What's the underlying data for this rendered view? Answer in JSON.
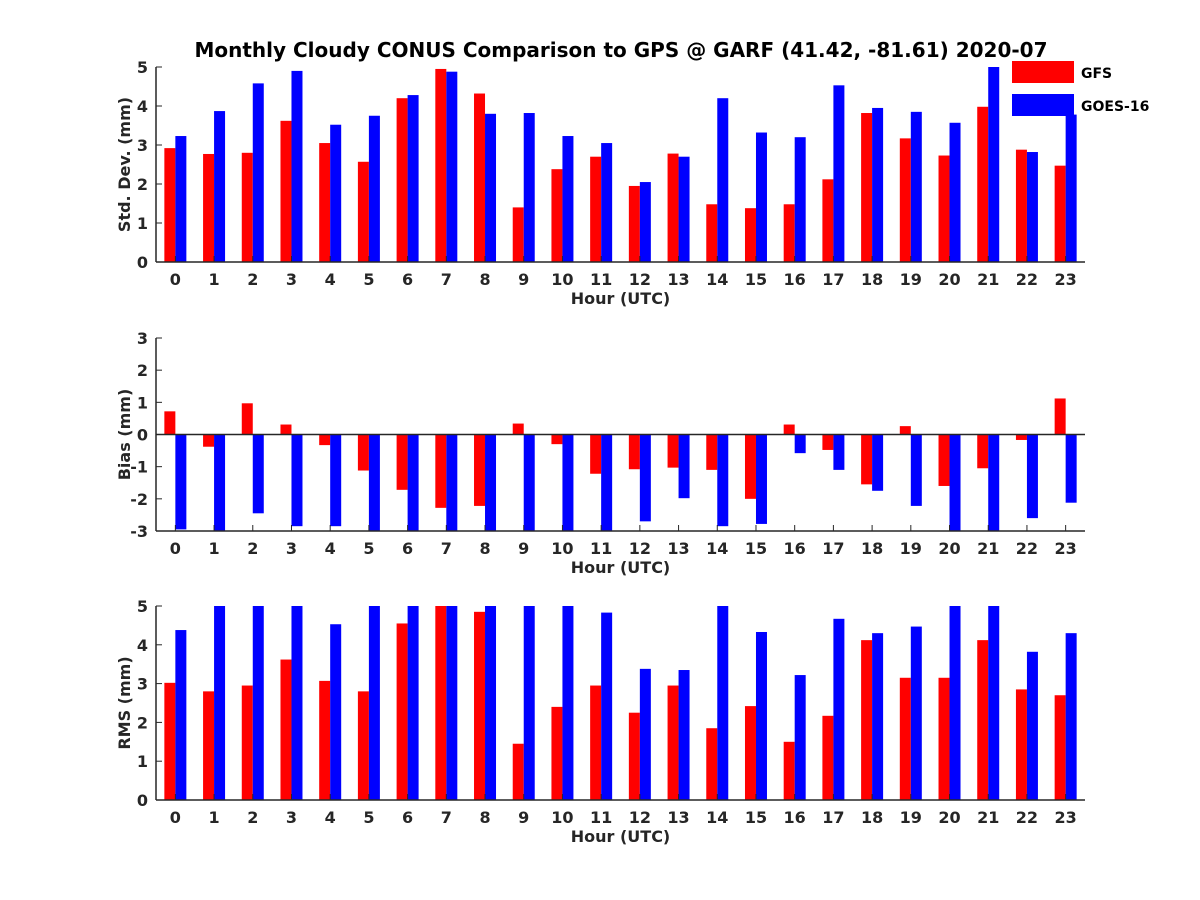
{
  "title": "Monthly Cloudy CONUS Comparison to GPS @ GARF (41.42, -81.61) 2020-07",
  "colors": {
    "GFS": "#ff0000",
    "GOES-16": "#0000ff",
    "axis": "#262626"
  },
  "legend": {
    "items": [
      "GFS",
      "GOES-16"
    ],
    "placement": "top-right"
  },
  "chart_data": [
    {
      "type": "bar",
      "xlabel": "Hour (UTC)",
      "ylabel": "Std. Dev. (mm)",
      "ylim": [
        0,
        5
      ],
      "yticks": [
        "0",
        "1",
        "2",
        "3",
        "4",
        "5"
      ],
      "categories": [
        "0",
        "1",
        "2",
        "3",
        "4",
        "5",
        "6",
        "7",
        "8",
        "9",
        "10",
        "11",
        "12",
        "13",
        "14",
        "15",
        "16",
        "17",
        "18",
        "19",
        "20",
        "21",
        "22",
        "23"
      ],
      "series": [
        {
          "name": "GFS",
          "values": [
            2.92,
            2.77,
            2.8,
            3.62,
            3.05,
            2.57,
            4.2,
            4.95,
            4.32,
            1.4,
            2.38,
            2.7,
            1.95,
            2.78,
            1.48,
            1.38,
            1.48,
            2.12,
            3.82,
            3.17,
            2.73,
            3.98,
            2.88,
            2.47
          ]
        },
        {
          "name": "GOES-16",
          "values": [
            3.23,
            3.87,
            4.58,
            4.9,
            3.52,
            3.75,
            4.28,
            4.88,
            3.8,
            3.82,
            3.23,
            3.05,
            2.05,
            2.7,
            4.2,
            3.32,
            3.2,
            4.53,
            3.95,
            3.85,
            3.57,
            5.0,
            2.82,
            3.78
          ]
        }
      ]
    },
    {
      "type": "bar",
      "xlabel": "Hour (UTC)",
      "ylabel": "Bias (mm)",
      "ylim": [
        -3,
        3
      ],
      "yticks": [
        "-3",
        "-2",
        "-1",
        "0",
        "1",
        "2",
        "3"
      ],
      "categories": [
        "0",
        "1",
        "2",
        "3",
        "4",
        "5",
        "6",
        "7",
        "8",
        "9",
        "10",
        "11",
        "12",
        "13",
        "14",
        "15",
        "16",
        "17",
        "18",
        "19",
        "20",
        "21",
        "22",
        "23"
      ],
      "series": [
        {
          "name": "GFS",
          "values": [
            0.72,
            -0.38,
            0.97,
            0.31,
            -0.33,
            -1.12,
            -1.72,
            -2.28,
            -2.22,
            0.34,
            -0.3,
            -1.22,
            -1.08,
            -1.03,
            -1.1,
            -2.0,
            0.31,
            -0.48,
            -1.55,
            0.26,
            -1.6,
            -1.05,
            -0.17,
            1.12
          ]
        },
        {
          "name": "GOES-16",
          "values": [
            -2.95,
            -3.0,
            -2.45,
            -2.85,
            -2.85,
            -3.0,
            -3.0,
            -3.0,
            -3.0,
            -3.0,
            -3.0,
            -3.0,
            -2.7,
            -1.98,
            -2.85,
            -2.78,
            -0.58,
            -1.1,
            -1.75,
            -2.22,
            -3.0,
            -3.0,
            -2.6,
            -2.12
          ]
        }
      ]
    },
    {
      "type": "bar",
      "xlabel": "Hour (UTC)",
      "ylabel": "RMS (mm)",
      "ylim": [
        0,
        5
      ],
      "yticks": [
        "0",
        "1",
        "2",
        "3",
        "4",
        "5"
      ],
      "categories": [
        "0",
        "1",
        "2",
        "3",
        "4",
        "5",
        "6",
        "7",
        "8",
        "9",
        "10",
        "11",
        "12",
        "13",
        "14",
        "15",
        "16",
        "17",
        "18",
        "19",
        "20",
        "21",
        "22",
        "23"
      ],
      "series": [
        {
          "name": "GFS",
          "values": [
            3.02,
            2.8,
            2.95,
            3.62,
            3.07,
            2.8,
            4.55,
            5.0,
            4.85,
            1.45,
            2.4,
            2.95,
            2.25,
            2.95,
            1.85,
            2.42,
            1.5,
            2.17,
            4.12,
            3.15,
            3.15,
            4.12,
            2.85,
            2.7
          ]
        },
        {
          "name": "GOES-16",
          "values": [
            4.38,
            5.0,
            5.0,
            5.0,
            4.53,
            5.0,
            5.0,
            5.0,
            5.0,
            5.0,
            5.0,
            4.83,
            3.38,
            3.35,
            5.0,
            4.33,
            3.22,
            4.67,
            4.3,
            4.47,
            5.0,
            5.0,
            3.82,
            4.3
          ]
        }
      ]
    }
  ]
}
